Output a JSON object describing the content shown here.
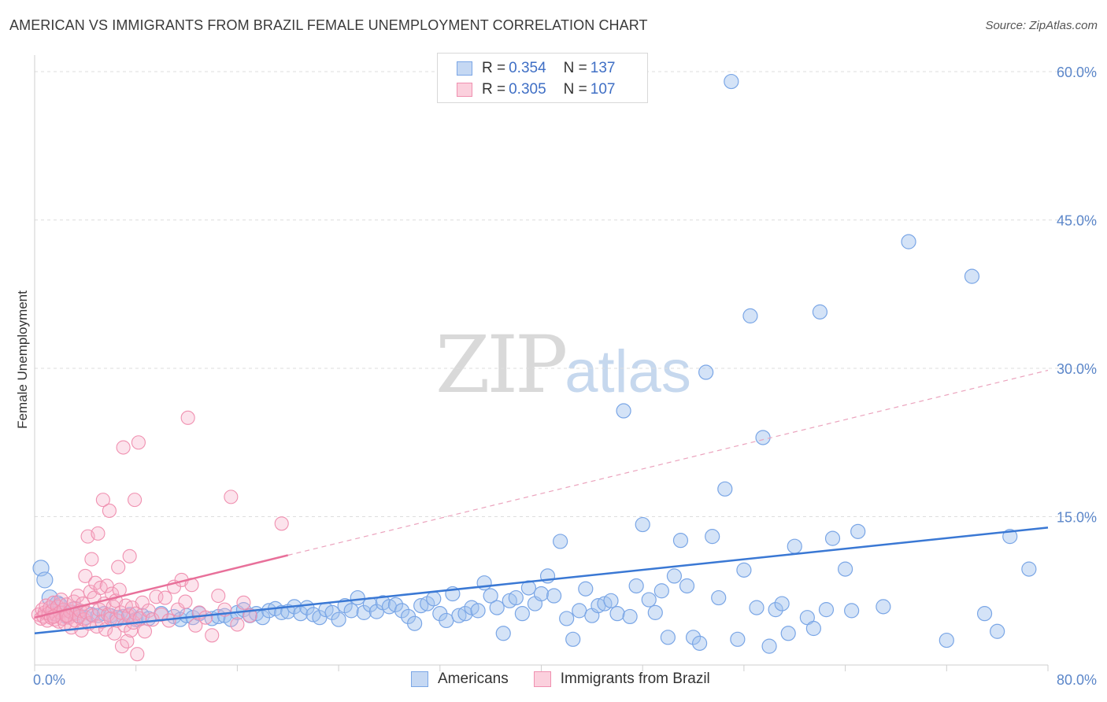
{
  "title": "AMERICAN VS IMMIGRANTS FROM BRAZIL FEMALE UNEMPLOYMENT CORRELATION CHART",
  "source": "Source: ZipAtlas.com",
  "watermark": {
    "zip": "ZIP",
    "atlas": "atlas"
  },
  "legend": {
    "rows": [
      {
        "r_label": "R =",
        "r_value": "0.354",
        "n_label": "N =",
        "n_value": "137",
        "color": "#7aa6e6"
      },
      {
        "r_label": "R =",
        "r_value": "0.305",
        "n_label": "N =",
        "n_value": "107",
        "color": "#f090b0"
      }
    ]
  },
  "bottom_legend": [
    "Americans",
    "Immigrants from Brazil"
  ],
  "chart_data": {
    "type": "scatter",
    "title": "AMERICAN VS IMMIGRANTS FROM BRAZIL FEMALE UNEMPLOYMENT CORRELATION CHART",
    "ylabel": "Female Unemployment",
    "xlim": [
      0,
      80
    ],
    "ylim": [
      0,
      63
    ],
    "x_tick_labels": [
      "0.0%",
      "80.0%"
    ],
    "y_ticks": [
      15,
      30,
      45,
      60
    ],
    "y_tick_labels": [
      "15.0%",
      "30.0%",
      "45.0%",
      "60.0%"
    ],
    "grid": "horizontal dashed",
    "legend_position": "top-center",
    "series": [
      {
        "name": "Americans",
        "color": "#7aa6e6",
        "trend": {
          "x": [
            0,
            80
          ],
          "y": [
            3.2,
            13.9
          ],
          "style": "solid"
        },
        "points": [
          [
            0.5,
            9.8
          ],
          [
            0.8,
            8.6
          ],
          [
            1.2,
            6.8
          ],
          [
            1.5,
            5.2
          ],
          [
            1.8,
            6.2
          ],
          [
            2.2,
            5.5
          ],
          [
            2.5,
            4.9
          ],
          [
            3,
            5.3
          ],
          [
            3.5,
            5.0
          ],
          [
            4,
            4.8
          ],
          [
            4.5,
            5.1
          ],
          [
            5,
            5.0
          ],
          [
            5.5,
            5.2
          ],
          [
            6,
            5.0
          ],
          [
            7,
            4.9
          ],
          [
            7.5,
            5.1
          ],
          [
            8,
            4.6
          ],
          [
            8.5,
            5.0
          ],
          [
            9,
            4.7
          ],
          [
            10,
            5.2
          ],
          [
            11,
            4.9
          ],
          [
            11.5,
            4.6
          ],
          [
            12,
            5.0
          ],
          [
            12.5,
            4.8
          ],
          [
            13,
            5.2
          ],
          [
            14,
            4.7
          ],
          [
            14.5,
            4.9
          ],
          [
            15,
            5.0
          ],
          [
            15.5,
            4.6
          ],
          [
            16,
            5.3
          ],
          [
            16.5,
            5.6
          ],
          [
            17,
            5.0
          ],
          [
            17.5,
            5.2
          ],
          [
            18,
            4.8
          ],
          [
            18.5,
            5.5
          ],
          [
            19,
            5.7
          ],
          [
            19.5,
            5.3
          ],
          [
            20,
            5.4
          ],
          [
            20.5,
            5.9
          ],
          [
            21,
            5.2
          ],
          [
            21.5,
            5.8
          ],
          [
            22,
            5.1
          ],
          [
            22.5,
            4.8
          ],
          [
            23,
            5.6
          ],
          [
            23.5,
            5.3
          ],
          [
            24,
            4.6
          ],
          [
            24.5,
            6.0
          ],
          [
            25,
            5.5
          ],
          [
            25.5,
            6.8
          ],
          [
            26,
            5.3
          ],
          [
            26.5,
            6.1
          ],
          [
            27,
            5.4
          ],
          [
            27.5,
            6.3
          ],
          [
            28,
            5.9
          ],
          [
            28.5,
            6.1
          ],
          [
            29,
            5.5
          ],
          [
            29.5,
            4.9
          ],
          [
            30,
            4.2
          ],
          [
            30.5,
            6.0
          ],
          [
            31,
            6.2
          ],
          [
            31.5,
            6.7
          ],
          [
            32,
            5.2
          ],
          [
            32.5,
            4.5
          ],
          [
            33,
            7.2
          ],
          [
            33.5,
            5.0
          ],
          [
            34,
            5.2
          ],
          [
            34.5,
            5.8
          ],
          [
            35,
            5.5
          ],
          [
            35.5,
            8.3
          ],
          [
            36,
            7.0
          ],
          [
            36.5,
            5.8
          ],
          [
            37,
            3.2
          ],
          [
            37.5,
            6.5
          ],
          [
            38,
            6.8
          ],
          [
            38.5,
            5.2
          ],
          [
            39,
            7.8
          ],
          [
            39.5,
            6.2
          ],
          [
            40,
            7.2
          ],
          [
            40.5,
            9.0
          ],
          [
            41,
            7.0
          ],
          [
            41.5,
            12.5
          ],
          [
            42,
            4.7
          ],
          [
            42.5,
            2.6
          ],
          [
            43,
            5.5
          ],
          [
            43.5,
            7.7
          ],
          [
            44,
            5.0
          ],
          [
            44.5,
            6.0
          ],
          [
            45,
            6.2
          ],
          [
            45.5,
            6.5
          ],
          [
            46,
            5.2
          ],
          [
            46.5,
            25.7
          ],
          [
            47,
            4.9
          ],
          [
            47.5,
            8.0
          ],
          [
            48,
            14.2
          ],
          [
            48.5,
            6.6
          ],
          [
            49,
            5.3
          ],
          [
            49.5,
            7.5
          ],
          [
            50,
            2.8
          ],
          [
            50.5,
            9.0
          ],
          [
            51,
            12.6
          ],
          [
            51.5,
            8.0
          ],
          [
            52,
            2.8
          ],
          [
            52.5,
            2.2
          ],
          [
            53,
            29.6
          ],
          [
            53.5,
            13.0
          ],
          [
            54,
            6.8
          ],
          [
            54.5,
            17.8
          ],
          [
            55,
            59.0
          ],
          [
            55.5,
            2.6
          ],
          [
            56,
            9.6
          ],
          [
            56.5,
            35.3
          ],
          [
            57,
            5.8
          ],
          [
            57.5,
            23.0
          ],
          [
            58,
            1.9
          ],
          [
            58.5,
            5.6
          ],
          [
            59,
            6.2
          ],
          [
            59.5,
            3.2
          ],
          [
            60,
            12.0
          ],
          [
            61,
            4.8
          ],
          [
            61.5,
            3.7
          ],
          [
            62,
            35.7
          ],
          [
            62.5,
            5.6
          ],
          [
            63,
            12.8
          ],
          [
            64,
            9.7
          ],
          [
            64.5,
            5.5
          ],
          [
            65,
            13.5
          ],
          [
            67,
            5.9
          ],
          [
            69,
            42.8
          ],
          [
            72,
            2.5
          ],
          [
            74,
            39.3
          ],
          [
            75,
            5.2
          ],
          [
            76,
            3.4
          ],
          [
            77,
            13.0
          ],
          [
            78.5,
            9.7
          ],
          [
            2,
            6.1
          ],
          [
            3.2,
            5.7
          ],
          [
            6.5,
            4.8
          ]
        ]
      },
      {
        "name": "Immigrants from Brazil",
        "color": "#f090b0",
        "trend": {
          "x": [
            0,
            20
          ],
          "y": [
            4.8,
            11.1
          ],
          "style": "solid"
        },
        "trend_extension": {
          "x": [
            20,
            80
          ],
          "y": [
            11.1,
            29.8
          ],
          "style": "dashed"
        },
        "points": [
          [
            0.3,
            5.1
          ],
          [
            0.5,
            4.7
          ],
          [
            0.6,
            5.6
          ],
          [
            0.7,
            4.9
          ],
          [
            0.8,
            5.3
          ],
          [
            0.9,
            6.0
          ],
          [
            1.0,
            4.5
          ],
          [
            1.1,
            5.2
          ],
          [
            1.2,
            5.8
          ],
          [
            1.3,
            4.8
          ],
          [
            1.4,
            5.5
          ],
          [
            1.5,
            6.3
          ],
          [
            1.6,
            4.6
          ],
          [
            1.7,
            5.1
          ],
          [
            1.8,
            5.9
          ],
          [
            1.9,
            4.4
          ],
          [
            2.0,
            5.3
          ],
          [
            2.1,
            6.6
          ],
          [
            2.2,
            4.7
          ],
          [
            2.3,
            5.6
          ],
          [
            2.4,
            4.2
          ],
          [
            2.5,
            6.1
          ],
          [
            2.6,
            5.0
          ],
          [
            2.7,
            4.8
          ],
          [
            2.8,
            5.4
          ],
          [
            2.9,
            3.8
          ],
          [
            3.0,
            5.7
          ],
          [
            3.1,
            6.4
          ],
          [
            3.2,
            4.5
          ],
          [
            3.3,
            5.2
          ],
          [
            3.4,
            7.0
          ],
          [
            3.5,
            4.9
          ],
          [
            3.6,
            5.5
          ],
          [
            3.7,
            3.5
          ],
          [
            3.8,
            6.2
          ],
          [
            3.9,
            4.6
          ],
          [
            4.0,
            9.0
          ],
          [
            4.1,
            5.3
          ],
          [
            4.2,
            13.0
          ],
          [
            4.3,
            4.2
          ],
          [
            4.4,
            7.4
          ],
          [
            4.5,
            10.7
          ],
          [
            4.6,
            5.0
          ],
          [
            4.7,
            6.8
          ],
          [
            4.8,
            8.3
          ],
          [
            4.9,
            3.9
          ],
          [
            5.0,
            13.3
          ],
          [
            5.1,
            5.6
          ],
          [
            5.2,
            7.8
          ],
          [
            5.3,
            4.4
          ],
          [
            5.4,
            16.7
          ],
          [
            5.5,
            6.2
          ],
          [
            5.6,
            3.6
          ],
          [
            5.7,
            8.0
          ],
          [
            5.8,
            5.1
          ],
          [
            5.9,
            15.6
          ],
          [
            6.0,
            4.7
          ],
          [
            6.1,
            7.2
          ],
          [
            6.2,
            5.9
          ],
          [
            6.3,
            3.2
          ],
          [
            6.4,
            6.5
          ],
          [
            6.5,
            4.5
          ],
          [
            6.6,
            9.9
          ],
          [
            6.7,
            7.6
          ],
          [
            6.8,
            5.3
          ],
          [
            6.9,
            1.9
          ],
          [
            7.0,
            22.0
          ],
          [
            7.1,
            4.0
          ],
          [
            7.2,
            6.0
          ],
          [
            7.3,
            2.4
          ],
          [
            7.4,
            5.0
          ],
          [
            7.5,
            11.0
          ],
          [
            7.6,
            3.5
          ],
          [
            7.7,
            5.8
          ],
          [
            7.8,
            4.3
          ],
          [
            7.9,
            16.7
          ],
          [
            8.0,
            5.2
          ],
          [
            8.1,
            1.1
          ],
          [
            8.2,
            22.5
          ],
          [
            8.3,
            4.7
          ],
          [
            8.5,
            6.3
          ],
          [
            8.7,
            3.4
          ],
          [
            9.0,
            5.5
          ],
          [
            9.3,
            4.6
          ],
          [
            9.6,
            6.9
          ],
          [
            10.0,
            5.1
          ],
          [
            10.3,
            6.8
          ],
          [
            10.6,
            4.5
          ],
          [
            11.0,
            7.9
          ],
          [
            11.3,
            5.6
          ],
          [
            11.6,
            8.6
          ],
          [
            11.9,
            6.4
          ],
          [
            12.1,
            25.0
          ],
          [
            12.4,
            8.1
          ],
          [
            12.7,
            4.0
          ],
          [
            13.0,
            5.3
          ],
          [
            13.5,
            4.8
          ],
          [
            14.0,
            3.0
          ],
          [
            14.5,
            7.0
          ],
          [
            15.0,
            5.6
          ],
          [
            15.5,
            17.0
          ],
          [
            16.0,
            4.1
          ],
          [
            16.5,
            6.3
          ],
          [
            17.0,
            5.0
          ],
          [
            19.5,
            14.3
          ],
          [
            1.5,
            4.9
          ],
          [
            2.5,
            5.0
          ]
        ]
      }
    ]
  }
}
